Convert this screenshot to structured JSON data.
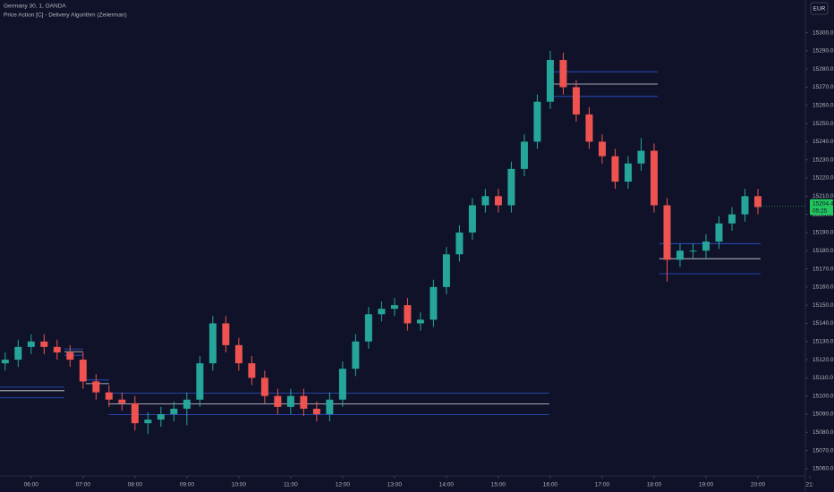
{
  "chart_data": {
    "type": "candlestick",
    "title": "Germany 30, 1, OANDA",
    "subtitle": "Price Action [C] - Delivery Algorithm (Zeiierman)",
    "currency": "EUR",
    "x": [
      5.5,
      5.75,
      6,
      6.25,
      6.5,
      6.75,
      7,
      7.25,
      7.5,
      7.75,
      8,
      8.25,
      8.5,
      8.75,
      9,
      9.25,
      9.5,
      9.75,
      10,
      10.25,
      10.5,
      10.75,
      11,
      11.25,
      11.5,
      11.75,
      12,
      12.25,
      12.5,
      12.75,
      13,
      13.25,
      13.5,
      13.75,
      14,
      14.25,
      14.5,
      14.75,
      15,
      15.25,
      15.5,
      15.75,
      16,
      16.25,
      16.5,
      16.75,
      17,
      17.25,
      17.5,
      17.75,
      18,
      18.25,
      18.5,
      18.75,
      19,
      19.25,
      19.5,
      19.75,
      20
    ],
    "open": [
      15118,
      15120,
      15127,
      15130,
      15127,
      15124,
      15120,
      15108,
      15102,
      15098,
      15096,
      15085,
      15087,
      15090,
      15093,
      15098,
      15118,
      15140,
      15128,
      15118,
      15110,
      15100,
      15094,
      15100,
      15093,
      15090,
      15098,
      15115,
      15130,
      15145,
      15148,
      15150,
      15140,
      15142,
      15160,
      15178,
      15190,
      15205,
      15210,
      15205,
      15225,
      15240,
      15262,
      15285,
      15270,
      15255,
      15240,
      15232,
      15218,
      15228,
      15235,
      15205,
      15175,
      15180,
      15180,
      15185,
      15195,
      15200,
      15210
    ],
    "high": [
      15124,
      15131,
      15134,
      15134,
      15131,
      15128,
      15124,
      15112,
      15106,
      15102,
      15100,
      15091,
      15094,
      15097,
      15102,
      15122,
      15144,
      15144,
      15132,
      15122,
      15114,
      15104,
      15104,
      15104,
      15097,
      15102,
      15119,
      15134,
      15149,
      15152,
      15154,
      15154,
      15146,
      15164,
      15182,
      15194,
      15209,
      15214,
      15214,
      15229,
      15244,
      15266,
      15290,
      15289,
      15274,
      15259,
      15244,
      15236,
      15232,
      15242,
      15239,
      15209,
      15184,
      15184,
      15189,
      15199,
      15204,
      15214,
      15214
    ],
    "low": [
      15114,
      15116,
      15123,
      15123,
      15120,
      15116,
      15104,
      15098,
      15094,
      15092,
      15081,
      15079,
      15083,
      15086,
      15084,
      15094,
      15114,
      15124,
      15114,
      15106,
      15096,
      15090,
      15090,
      15089,
      15086,
      15086,
      15094,
      15111,
      15126,
      15141,
      15144,
      15136,
      15136,
      15138,
      15156,
      15174,
      15186,
      15201,
      15201,
      15201,
      15221,
      15236,
      15258,
      15266,
      15251,
      15236,
      15228,
      15214,
      15214,
      15224,
      15201,
      15163,
      15171,
      15176,
      15176,
      15181,
      15191,
      15196,
      15200
    ],
    "close": [
      15120,
      15127,
      15130,
      15127,
      15124,
      15120,
      15108,
      15102,
      15098,
      15096,
      15085,
      15087,
      15090,
      15093,
      15098,
      15118,
      15140,
      15128,
      15118,
      15110,
      15100,
      15094,
      15100,
      15093,
      15090,
      15098,
      15115,
      15130,
      15145,
      15148,
      15150,
      15140,
      15142,
      15160,
      15178,
      15190,
      15205,
      15210,
      15205,
      15225,
      15240,
      15262,
      15285,
      15270,
      15255,
      15240,
      15232,
      15218,
      15228,
      15235,
      15205,
      15175,
      15180,
      15180,
      15185,
      15195,
      15200,
      15210,
      15204
    ],
    "up_color": "#26a69a",
    "down_color": "#ef5350",
    "levels": [
      {
        "price": 15278.5,
        "x0": 16.04,
        "x1": 18.07,
        "color": "#2f55d4"
      },
      {
        "price": 15271.7,
        "x0": 16.04,
        "x1": 18.07,
        "color": "#d8d8e0"
      },
      {
        "price": 15264.9,
        "x0": 16.04,
        "x1": 18.07,
        "color": "#2f55d4"
      },
      {
        "price": 15183.9,
        "x0": 18.1,
        "x1": 20.05,
        "color": "#2f55d4"
      },
      {
        "price": 15175.6,
        "x0": 18.1,
        "x1": 20.05,
        "color": "#d8d8e0"
      },
      {
        "price": 15167.3,
        "x0": 18.1,
        "x1": 20.05,
        "color": "#2f55d4"
      },
      {
        "price": 15101.5,
        "x0": 7.49,
        "x1": 15.98,
        "color": "#2f55d4"
      },
      {
        "price": 15095.6,
        "x0": 7.49,
        "x1": 15.98,
        "color": "#d8d8e0"
      },
      {
        "price": 15089.8,
        "x0": 7.49,
        "x1": 15.98,
        "color": "#2f55d4"
      },
      {
        "price": 15104.9,
        "x0": 5.4,
        "x1": 6.64,
        "color": "#2f55d4"
      },
      {
        "price": 15102.9,
        "x0": 5.4,
        "x1": 6.64,
        "color": "#d8d8e0"
      },
      {
        "price": 15099.0,
        "x0": 5.4,
        "x1": 6.64,
        "color": "#2f55d4"
      },
      {
        "price": 15125.9,
        "x0": 6.64,
        "x1": 7.0,
        "color": "#2f55d4"
      },
      {
        "price": 15124.4,
        "x0": 6.64,
        "x1": 7.0,
        "color": "#d8d8e0"
      },
      {
        "price": 15122.4,
        "x0": 6.64,
        "x1": 7.0,
        "color": "#2f55d4"
      },
      {
        "price": 15108.8,
        "x0": 7.05,
        "x1": 7.5,
        "color": "#2f55d4"
      },
      {
        "price": 15106.8,
        "x0": 7.05,
        "x1": 7.5,
        "color": "#d8d8e0"
      }
    ],
    "last_price": 15204.4,
    "countdown": "05:25",
    "last_color": "#22c55e",
    "xlim": [
      5.4,
      21.0
    ],
    "xticks": [
      {
        "value": 6,
        "label": "06:00"
      },
      {
        "value": 7,
        "label": "07:00"
      },
      {
        "value": 8,
        "label": "08:00"
      },
      {
        "value": 9,
        "label": "09:00"
      },
      {
        "value": 10,
        "label": "10:00"
      },
      {
        "value": 11,
        "label": "11:00"
      },
      {
        "value": 12,
        "label": "12:00"
      },
      {
        "value": 13,
        "label": "13:00"
      },
      {
        "value": 14,
        "label": "14:00"
      },
      {
        "value": 15,
        "label": "15:00"
      },
      {
        "value": 16,
        "label": "16:00"
      },
      {
        "value": 17,
        "label": "17:00"
      },
      {
        "value": 18,
        "label": "18:00"
      },
      {
        "value": 19,
        "label": "19:00"
      },
      {
        "value": 20,
        "label": "20:00"
      },
      {
        "value": 21,
        "label": "21:"
      }
    ],
    "ylim": [
      15057,
      15318
    ],
    "yticks": [
      {
        "value": 15060,
        "label": "15060.0"
      },
      {
        "value": 15070,
        "label": "15070.0"
      },
      {
        "value": 15080,
        "label": "15080.0"
      },
      {
        "value": 15090,
        "label": "15090.0"
      },
      {
        "value": 15100,
        "label": "15100.0"
      },
      {
        "value": 15110,
        "label": "15110.0"
      },
      {
        "value": 15120,
        "label": "15120.0"
      },
      {
        "value": 15130,
        "label": "15130.0"
      },
      {
        "value": 15140,
        "label": "15140.0"
      },
      {
        "value": 15150,
        "label": "15150.0"
      },
      {
        "value": 15160,
        "label": "15160.0"
      },
      {
        "value": 15170,
        "label": "15170.0"
      },
      {
        "value": 15180,
        "label": "15180.0"
      },
      {
        "value": 15190,
        "label": "15190.0"
      },
      {
        "value": 15200,
        "label": "15200.0"
      },
      {
        "value": 15210,
        "label": "15210.0"
      },
      {
        "value": 15220,
        "label": "15220.0"
      },
      {
        "value": 15230,
        "label": "15230.0"
      },
      {
        "value": 15240,
        "label": "15240.0"
      },
      {
        "value": 15250,
        "label": "15250.0"
      },
      {
        "value": 15260,
        "label": "15260.0"
      },
      {
        "value": 15270,
        "label": "15270.0"
      },
      {
        "value": 15280,
        "label": "15280.0"
      },
      {
        "value": 15290,
        "label": "15290.0"
      },
      {
        "value": 15300,
        "label": "15300.0"
      }
    ]
  }
}
